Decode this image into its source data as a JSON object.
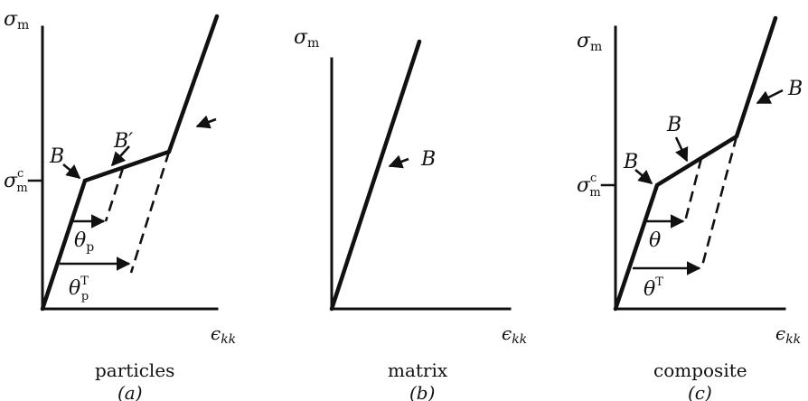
{
  "panels": [
    {
      "id": "a",
      "y_label_main": "σ",
      "y_label_sub": "m",
      "x_label_main": "ϵ",
      "x_label_sub": "kk",
      "yield_label_main": "σ",
      "yield_label_sup": "c",
      "yield_label_sub": "m",
      "caption": "particles",
      "panel_letter": "(a)",
      "point_B": "B",
      "point_B_prime": "B′",
      "theta_main": "θ",
      "theta_sub": "p",
      "thetaT_main": "θ",
      "thetaT_sub": "p",
      "thetaT_sup": "T"
    },
    {
      "id": "b",
      "y_label_main": "σ",
      "y_label_sub": "m",
      "x_label_main": "ϵ",
      "x_label_sub": "kk",
      "caption": "matrix",
      "panel_letter": "(b)",
      "point_B": "B"
    },
    {
      "id": "c",
      "y_label_main": "σ",
      "y_label_sub": "m",
      "x_label_main": "ϵ",
      "x_label_sub": "kk",
      "yield_label_main": "σ",
      "yield_label_sup": "c",
      "yield_label_sub": "m",
      "caption": "composite",
      "panel_letter": "(c)",
      "point_B_lower": "B",
      "point_B_mid": "B",
      "point_B_upper": "B",
      "theta_main": "θ",
      "thetaT_main": "θ",
      "thetaT_sup": "T"
    }
  ]
}
